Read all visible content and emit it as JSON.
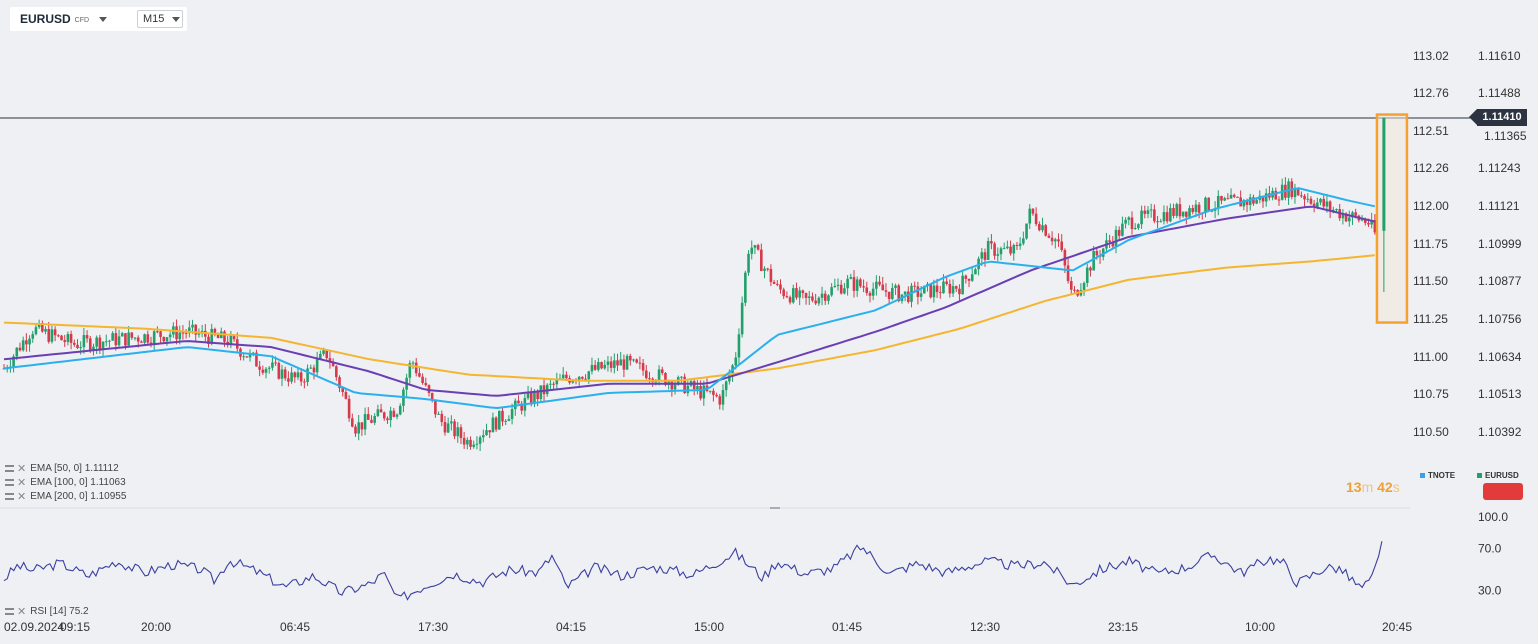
{
  "header": {
    "symbol": "EURUSD",
    "instrument_type": "CFD",
    "timeframe": "M15"
  },
  "current_price": "1.11410",
  "countdown": {
    "minutes": "13",
    "minutes_unit": "m",
    "seconds": "42",
    "seconds_unit": "s"
  },
  "sources": [
    {
      "label": "TNOTE",
      "color": "#3aa0e8"
    },
    {
      "label": "EURUSD",
      "color": "#22a06b"
    }
  ],
  "indicators": [
    {
      "label": "EMA [50, 0]",
      "value": "1.11112",
      "color": "#2bb0ee"
    },
    {
      "label": "EMA [100, 0]",
      "value": "1.11063",
      "color": "#6a3fb3"
    },
    {
      "label": "EMA [200, 0]",
      "value": "1.10955",
      "color": "#f5b52e"
    }
  ],
  "rsi": {
    "label": "RSI [14]",
    "value": "75.2",
    "levels": [
      "100.0",
      "70.0",
      "30.0"
    ]
  },
  "colors": {
    "up": "#22a06b",
    "down": "#d63a4a",
    "rsi_line": "#3b3f9e",
    "highlight": "#f5a030",
    "price_line": "#2b3440"
  },
  "chart_data": {
    "type": "candlestick",
    "left_axis_ticks": [
      "113.02",
      "112.76",
      "112.51",
      "112.26",
      "112.00",
      "111.75",
      "111.50",
      "111.25",
      "111.00",
      "110.75",
      "110.50"
    ],
    "right_axis_ticks": [
      "1.11610",
      "1.11488",
      "1.11365",
      "1.11243",
      "1.11121",
      "1.10999",
      "1.10877",
      "1.10756",
      "1.10634",
      "1.10513",
      "1.10392"
    ],
    "price_range": [
      1.1033,
      1.1167
    ],
    "time_labels": [
      "02.09.2024",
      "09:15",
      "20:00",
      "06:45",
      "17:30",
      "04:15",
      "15:00",
      "01:45",
      "12:30",
      "23:15",
      "10:00",
      "20:45"
    ],
    "close_path": [
      [
        0,
        1.1059
      ],
      [
        0.02,
        1.1072
      ],
      [
        0.05,
        1.1067
      ],
      [
        0.09,
        1.1069
      ],
      [
        0.13,
        1.1071
      ],
      [
        0.16,
        1.1068
      ],
      [
        0.18,
        1.1061
      ],
      [
        0.21,
        1.1055
      ],
      [
        0.23,
        1.1064
      ],
      [
        0.25,
        1.104
      ],
      [
        0.28,
        1.1046
      ],
      [
        0.29,
        1.1062
      ],
      [
        0.31,
        1.1042
      ],
      [
        0.33,
        1.1035
      ],
      [
        0.36,
        1.1045
      ],
      [
        0.4,
        1.1056
      ],
      [
        0.44,
        1.1061
      ],
      [
        0.48,
        1.1054
      ],
      [
        0.51,
        1.1049
      ],
      [
        0.52,
        1.1062
      ],
      [
        0.53,
        1.11
      ],
      [
        0.55,
        1.1085
      ],
      [
        0.57,
        1.1081
      ],
      [
        0.6,
        1.1087
      ],
      [
        0.64,
        1.1083
      ],
      [
        0.68,
        1.1086
      ],
      [
        0.7,
        1.1098
      ],
      [
        0.72,
        1.1097
      ],
      [
        0.73,
        1.111
      ],
      [
        0.75,
        1.11
      ],
      [
        0.76,
        1.1082
      ],
      [
        0.775,
        1.1095
      ],
      [
        0.8,
        1.1107
      ],
      [
        0.85,
        1.1112
      ],
      [
        0.89,
        1.1114
      ],
      [
        0.915,
        1.1118
      ],
      [
        0.935,
        1.1113
      ],
      [
        0.955,
        1.1109
      ],
      [
        0.97,
        1.1107
      ],
      [
        0.975,
        1.1103
      ],
      [
        0.98,
        1.1141
      ]
    ],
    "ema_50": [
      [
        0,
        1.1059
      ],
      [
        0.13,
        1.1066
      ],
      [
        0.19,
        1.1063
      ],
      [
        0.25,
        1.1051
      ],
      [
        0.3,
        1.1049
      ],
      [
        0.35,
        1.1046
      ],
      [
        0.43,
        1.1051
      ],
      [
        0.5,
        1.1052
      ],
      [
        0.55,
        1.107
      ],
      [
        0.62,
        1.1078
      ],
      [
        0.67,
        1.1089
      ],
      [
        0.7,
        1.1094
      ],
      [
        0.76,
        1.1091
      ],
      [
        0.8,
        1.1101
      ],
      [
        0.86,
        1.1111
      ],
      [
        0.92,
        1.1118
      ],
      [
        0.955,
        1.1114
      ],
      [
        0.975,
        1.1112
      ]
    ],
    "ema_100": [
      [
        0,
        1.1062
      ],
      [
        0.13,
        1.1068
      ],
      [
        0.19,
        1.1066
      ],
      [
        0.26,
        1.1058
      ],
      [
        0.3,
        1.1052
      ],
      [
        0.35,
        1.105
      ],
      [
        0.43,
        1.1054
      ],
      [
        0.5,
        1.1054
      ],
      [
        0.55,
        1.1061
      ],
      [
        0.62,
        1.1071
      ],
      [
        0.67,
        1.1079
      ],
      [
        0.73,
        1.1091
      ],
      [
        0.8,
        1.1102
      ],
      [
        0.87,
        1.1108
      ],
      [
        0.93,
        1.1112
      ],
      [
        0.975,
        1.1107
      ]
    ],
    "ema_200": [
      [
        0,
        1.1074
      ],
      [
        0.1,
        1.1072
      ],
      [
        0.19,
        1.1069
      ],
      [
        0.26,
        1.1062
      ],
      [
        0.33,
        1.1057
      ],
      [
        0.41,
        1.1055
      ],
      [
        0.48,
        1.1055
      ],
      [
        0.55,
        1.1059
      ],
      [
        0.62,
        1.1065
      ],
      [
        0.68,
        1.1072
      ],
      [
        0.74,
        1.1081
      ],
      [
        0.8,
        1.1088
      ],
      [
        0.87,
        1.1092
      ],
      [
        0.93,
        1.1094
      ],
      [
        0.975,
        1.1096
      ]
    ],
    "rsi_range": [
      0,
      100
    ],
    "rsi_path": [
      [
        0,
        41
      ],
      [
        0.01,
        54
      ],
      [
        0.02,
        49
      ],
      [
        0.04,
        56
      ],
      [
        0.06,
        44
      ],
      [
        0.08,
        58
      ],
      [
        0.1,
        47
      ],
      [
        0.12,
        55
      ],
      [
        0.14,
        50
      ],
      [
        0.15,
        39
      ],
      [
        0.16,
        59
      ],
      [
        0.18,
        48
      ],
      [
        0.2,
        33
      ],
      [
        0.22,
        44
      ],
      [
        0.24,
        28
      ],
      [
        0.26,
        36
      ],
      [
        0.27,
        46
      ],
      [
        0.28,
        21
      ],
      [
        0.3,
        35
      ],
      [
        0.32,
        46
      ],
      [
        0.34,
        38
      ],
      [
        0.36,
        50
      ],
      [
        0.38,
        47
      ],
      [
        0.39,
        63
      ],
      [
        0.4,
        33
      ],
      [
        0.42,
        52
      ],
      [
        0.44,
        44
      ],
      [
        0.46,
        52
      ],
      [
        0.47,
        51
      ],
      [
        0.49,
        45
      ],
      [
        0.52,
        66
      ],
      [
        0.54,
        42
      ],
      [
        0.55,
        58
      ],
      [
        0.57,
        46
      ],
      [
        0.59,
        51
      ],
      [
        0.61,
        72
      ],
      [
        0.63,
        46
      ],
      [
        0.65,
        56
      ],
      [
        0.67,
        47
      ],
      [
        0.69,
        55
      ],
      [
        0.7,
        58
      ],
      [
        0.72,
        53
      ],
      [
        0.74,
        57
      ],
      [
        0.76,
        35
      ],
      [
        0.78,
        50
      ],
      [
        0.8,
        58
      ],
      [
        0.82,
        46
      ],
      [
        0.84,
        52
      ],
      [
        0.86,
        64
      ],
      [
        0.88,
        47
      ],
      [
        0.9,
        61
      ],
      [
        0.91,
        56
      ],
      [
        0.92,
        37
      ],
      [
        0.94,
        52
      ],
      [
        0.95,
        51
      ],
      [
        0.965,
        32
      ],
      [
        0.972,
        38
      ],
      [
        0.978,
        62
      ],
      [
        0.98,
        77
      ]
    ],
    "highlight_box": {
      "price_high": 1.1141,
      "price_low": 1.1074
    }
  }
}
